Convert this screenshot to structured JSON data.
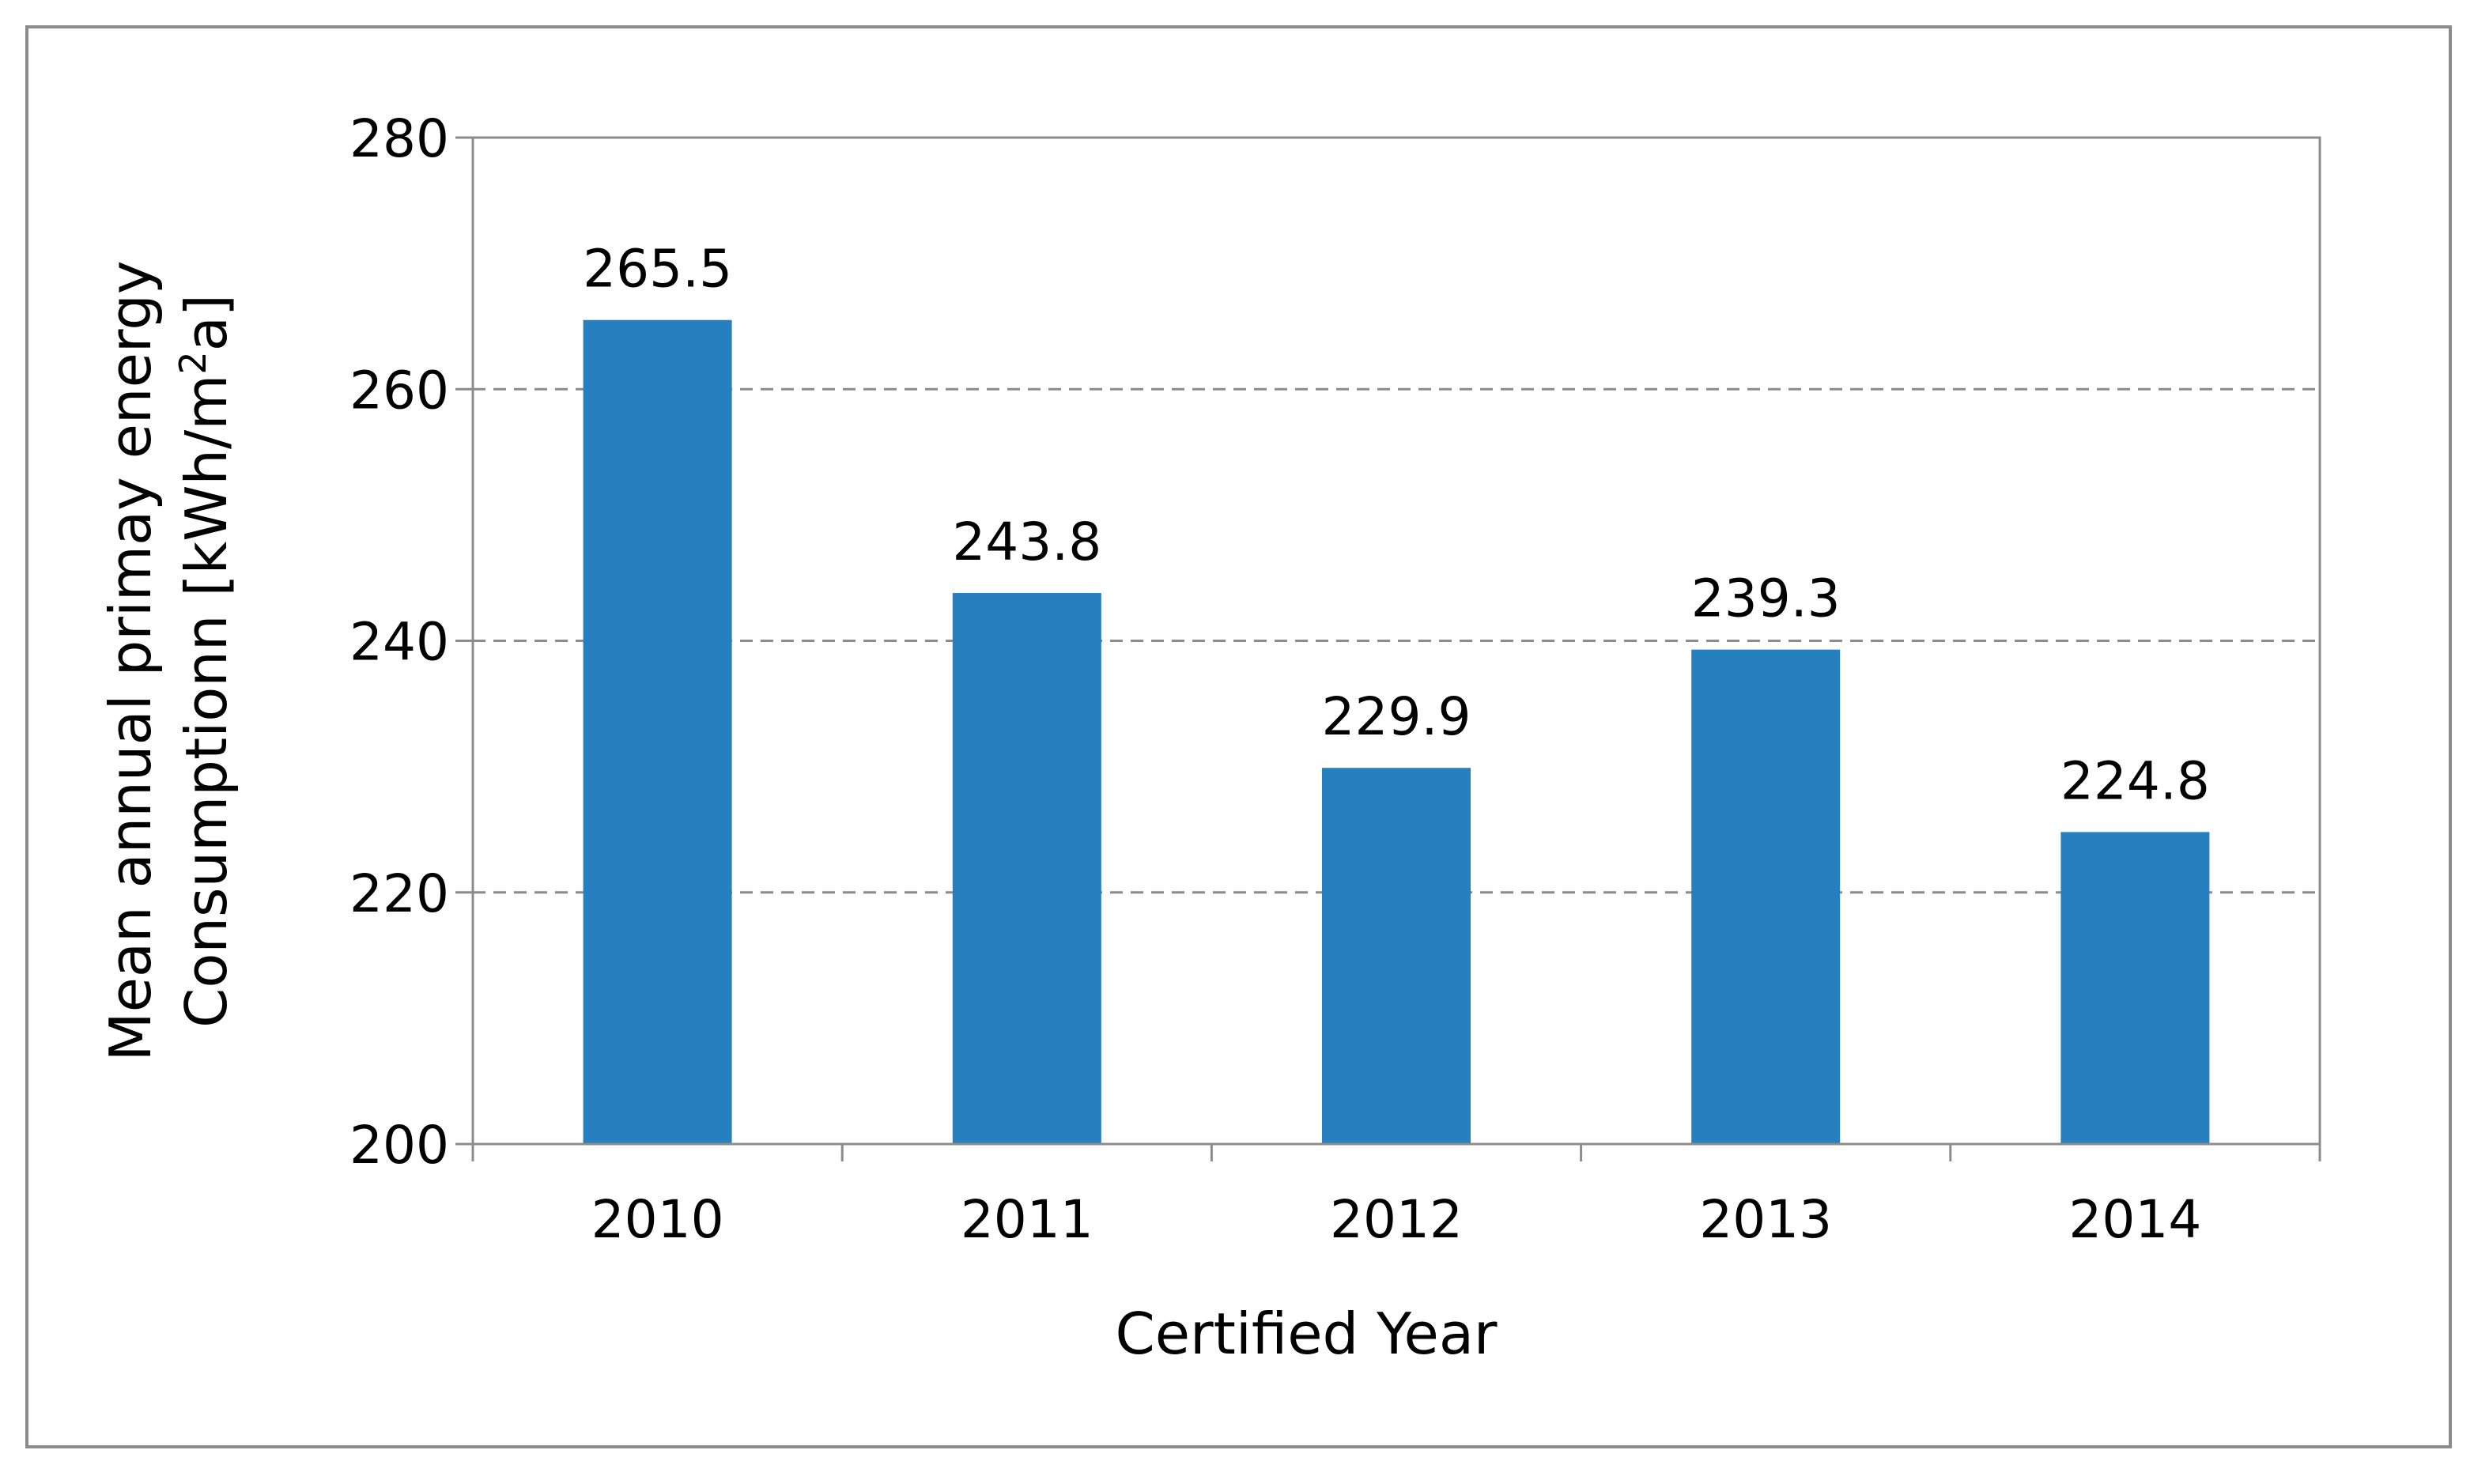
{
  "chart_data": {
    "type": "bar",
    "title": "",
    "xlabel": "Certified Year",
    "ylabel_line1": "Mean annual primay energy",
    "ylabel_line2_prefix": "Consumptionn [kWh/m",
    "ylabel_line2_sup": "2",
    "ylabel_line2_suffix": "a]",
    "categories": [
      "2010",
      "2011",
      "2012",
      "2013",
      "2014"
    ],
    "values": [
      265.5,
      243.8,
      229.9,
      239.3,
      224.8
    ],
    "data_labels": [
      "265.5",
      "243.8",
      "229.9",
      "239.3",
      "224.8"
    ],
    "ylim": [
      200,
      280
    ],
    "yticks": [
      200,
      220,
      240,
      260,
      280
    ],
    "grid": true,
    "grid_style": "dashed",
    "legend": "none",
    "bar_color": "#2680C0",
    "grid_color": "#8c8c8c"
  }
}
